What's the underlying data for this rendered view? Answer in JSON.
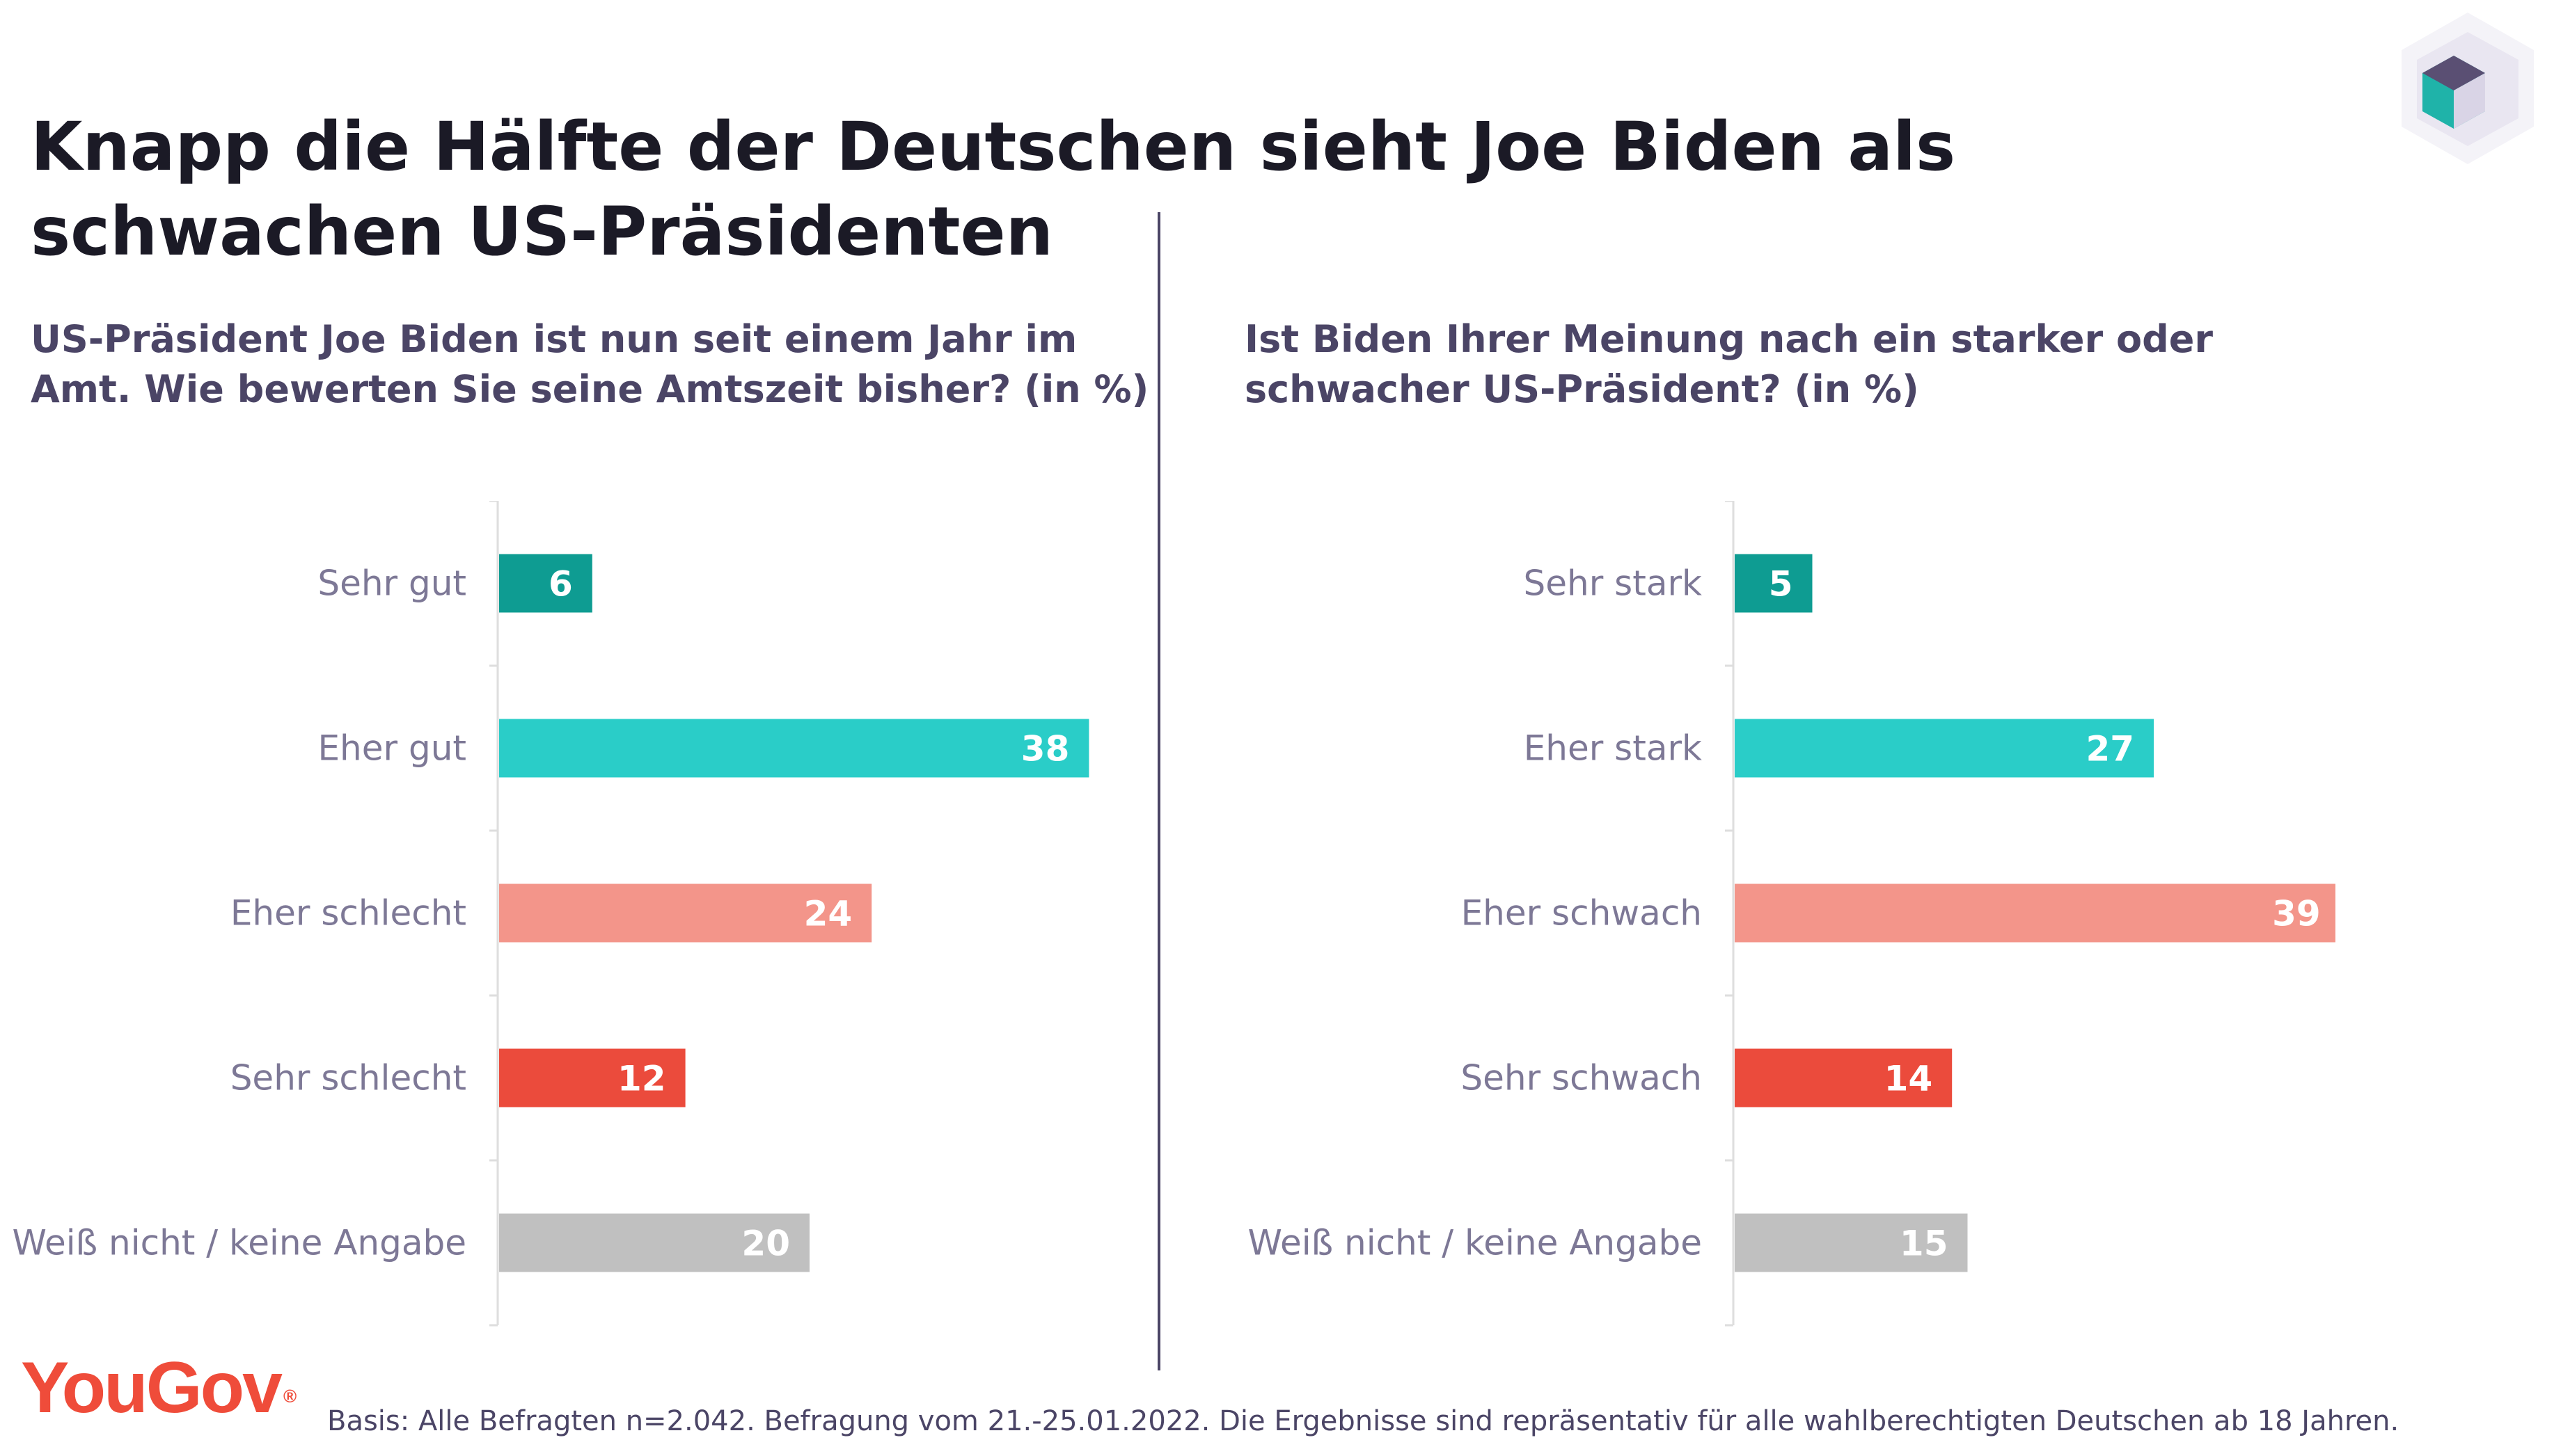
{
  "title": "Knapp die Hälfte der Deutschen sieht Joe Biden als schwachen US-Präsidenten",
  "footnote": "Basis: Alle Befragten n=2.042. Befragung vom 21.-25.01.2022. Die Ergebnisse sind repräsentativ für alle wahlberechtigten Deutschen ab 18 Jahren.",
  "logo": {
    "text": "YouGov",
    "mark": "®"
  },
  "chart_data": [
    {
      "type": "bar",
      "orientation": "horizontal",
      "title": "US-Präsident Joe Biden ist nun seit einem Jahr im Amt. Wie bewerten Sie seine Amtszeit bisher? (in %)",
      "categories": [
        "Sehr gut",
        "Eher gut",
        "Eher schlecht",
        "Sehr schlecht",
        "Weiß nicht / keine Angabe"
      ],
      "values": [
        6,
        38,
        24,
        12,
        20
      ],
      "colors": [
        "#0e9c92",
        "#2acdc8",
        "#f3958a",
        "#eb4b3c",
        "#c0c0c0"
      ],
      "xlim": [
        0,
        40
      ]
    },
    {
      "type": "bar",
      "orientation": "horizontal",
      "title": "Ist Biden Ihrer Meinung nach ein starker oder schwacher US-Präsident? (in %)",
      "categories": [
        "Sehr stark",
        "Eher stark",
        "Eher schwach",
        "Sehr schwach",
        "Weiß nicht / keine Angabe"
      ],
      "values": [
        5,
        27,
        39,
        14,
        15
      ],
      "colors": [
        "#0e9c92",
        "#2acdc8",
        "#f3958a",
        "#eb4b3c",
        "#c0c0c0"
      ],
      "xlim": [
        0,
        40
      ]
    }
  ],
  "colors": {
    "title": "#1b1a26",
    "subtitle": "#4b4566",
    "category_label": "#7d7896",
    "axis": "#dedede",
    "divider": "#4b4566",
    "brand": "#ef4c3a"
  }
}
